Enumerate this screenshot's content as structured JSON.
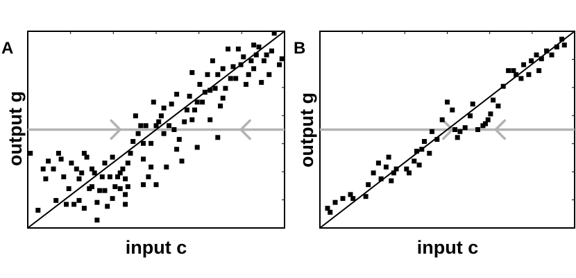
{
  "colors": {
    "points": "#000000",
    "diagonal": "#000000",
    "threshold": "#b3b3b3",
    "frame": "#000000"
  },
  "chart_data": [
    {
      "type": "scatter",
      "panel_label": "A",
      "xlabel": "input c",
      "ylabel": "output g",
      "xlim": [
        0,
        1
      ],
      "ylim": [
        0,
        1
      ],
      "grid": false,
      "diagonal": {
        "from": [
          0,
          0
        ],
        "to": [
          1,
          1
        ]
      },
      "threshold": {
        "y": 0.5,
        "arrows": [
          {
            "x": 0.36,
            "direction": "right"
          },
          {
            "x": 0.83,
            "direction": "left"
          }
        ]
      },
      "points": [
        [
          0.01,
          0.38
        ],
        [
          0.04,
          0.09
        ],
        [
          0.06,
          0.3
        ],
        [
          0.07,
          0.25
        ],
        [
          0.08,
          0.34
        ],
        [
          0.1,
          0.3
        ],
        [
          0.11,
          0.14
        ],
        [
          0.12,
          0.38
        ],
        [
          0.13,
          0.35
        ],
        [
          0.14,
          0.26
        ],
        [
          0.15,
          0.12
        ],
        [
          0.16,
          0.2
        ],
        [
          0.17,
          0.33
        ],
        [
          0.18,
          0.12
        ],
        [
          0.19,
          0.3
        ],
        [
          0.2,
          0.25
        ],
        [
          0.2,
          0.14
        ],
        [
          0.21,
          0.28
        ],
        [
          0.22,
          0.1
        ],
        [
          0.22,
          0.38
        ],
        [
          0.23,
          0.36
        ],
        [
          0.24,
          0.2
        ],
        [
          0.25,
          0.3
        ],
        [
          0.25,
          0.21
        ],
        [
          0.26,
          0.28
        ],
        [
          0.27,
          0.04
        ],
        [
          0.27,
          0.13
        ],
        [
          0.28,
          0.19
        ],
        [
          0.29,
          0.26
        ],
        [
          0.3,
          0.33
        ],
        [
          0.3,
          0.19
        ],
        [
          0.31,
          0.11
        ],
        [
          0.32,
          0.26
        ],
        [
          0.33,
          0.15
        ],
        [
          0.33,
          0.36
        ],
        [
          0.34,
          0.21
        ],
        [
          0.35,
          0.26
        ],
        [
          0.36,
          0.2
        ],
        [
          0.36,
          0.28
        ],
        [
          0.37,
          0.3
        ],
        [
          0.38,
          0.17
        ],
        [
          0.38,
          0.12
        ],
        [
          0.38,
          0.25
        ],
        [
          0.39,
          0.21
        ],
        [
          0.39,
          0.33
        ],
        [
          0.4,
          0.38
        ],
        [
          0.41,
          0.44
        ],
        [
          0.42,
          0.57
        ],
        [
          0.43,
          0.48
        ],
        [
          0.44,
          0.52
        ],
        [
          0.45,
          0.22
        ],
        [
          0.45,
          0.35
        ],
        [
          0.45,
          0.43
        ],
        [
          0.46,
          0.52
        ],
        [
          0.47,
          0.26
        ],
        [
          0.48,
          0.31
        ],
        [
          0.48,
          0.43
        ],
        [
          0.49,
          0.64
        ],
        [
          0.5,
          0.22
        ],
        [
          0.5,
          0.52
        ],
        [
          0.51,
          0.54
        ],
        [
          0.52,
          0.57
        ],
        [
          0.53,
          0.48
        ],
        [
          0.53,
          0.61
        ],
        [
          0.54,
          0.31
        ],
        [
          0.55,
          0.52
        ],
        [
          0.56,
          0.63
        ],
        [
          0.57,
          0.5
        ],
        [
          0.58,
          0.4
        ],
        [
          0.58,
          0.68
        ],
        [
          0.59,
          0.45
        ],
        [
          0.6,
          0.34
        ],
        [
          0.61,
          0.54
        ],
        [
          0.62,
          0.6
        ],
        [
          0.63,
          0.67
        ],
        [
          0.64,
          0.55
        ],
        [
          0.64,
          0.79
        ],
        [
          0.65,
          0.6
        ],
        [
          0.66,
          0.64
        ],
        [
          0.66,
          0.41
        ],
        [
          0.67,
          0.73
        ],
        [
          0.68,
          0.64
        ],
        [
          0.69,
          0.69
        ],
        [
          0.7,
          0.78
        ],
        [
          0.71,
          0.55
        ],
        [
          0.71,
          0.7
        ],
        [
          0.72,
          0.85
        ],
        [
          0.73,
          0.71
        ],
        [
          0.74,
          0.46
        ],
        [
          0.74,
          0.78
        ],
        [
          0.75,
          0.62
        ],
        [
          0.76,
          0.66
        ],
        [
          0.76,
          0.81
        ],
        [
          0.77,
          0.71
        ],
        [
          0.78,
          0.91
        ],
        [
          0.79,
          0.76
        ],
        [
          0.8,
          0.82
        ],
        [
          0.81,
          0.76
        ],
        [
          0.82,
          0.91
        ],
        [
          0.83,
          0.83
        ],
        [
          0.84,
          0.87
        ],
        [
          0.85,
          0.73
        ],
        [
          0.86,
          0.78
        ],
        [
          0.87,
          0.85
        ],
        [
          0.88,
          0.81
        ],
        [
          0.88,
          0.93
        ],
        [
          0.89,
          0.88
        ],
        [
          0.9,
          0.92
        ],
        [
          0.91,
          0.74
        ],
        [
          0.92,
          0.85
        ],
        [
          0.93,
          0.88
        ],
        [
          0.94,
          0.78
        ],
        [
          0.95,
          0.9
        ],
        [
          0.96,
          0.99
        ],
        [
          0.98,
          0.83
        ],
        [
          0.99,
          0.86
        ]
      ]
    },
    {
      "type": "scatter",
      "panel_label": "B",
      "xlabel": "input c",
      "ylabel": "output g",
      "xlim": [
        0,
        1
      ],
      "ylim": [
        0,
        1
      ],
      "grid": false,
      "diagonal": {
        "from": [
          0,
          0
        ],
        "to": [
          1,
          1
        ]
      },
      "threshold": {
        "y": 0.5,
        "arrows": [
          {
            "x": 0.52,
            "direction": "right"
          },
          {
            "x": 0.69,
            "direction": "left"
          }
        ]
      },
      "points": [
        [
          0.03,
          0.1
        ],
        [
          0.04,
          0.08
        ],
        [
          0.06,
          0.13
        ],
        [
          0.09,
          0.15
        ],
        [
          0.12,
          0.17
        ],
        [
          0.13,
          0.15
        ],
        [
          0.18,
          0.16
        ],
        [
          0.19,
          0.22
        ],
        [
          0.21,
          0.28
        ],
        [
          0.23,
          0.33
        ],
        [
          0.24,
          0.25
        ],
        [
          0.26,
          0.31
        ],
        [
          0.27,
          0.36
        ],
        [
          0.28,
          0.24
        ],
        [
          0.29,
          0.28
        ],
        [
          0.3,
          0.3
        ],
        [
          0.34,
          0.3
        ],
        [
          0.35,
          0.28
        ],
        [
          0.37,
          0.34
        ],
        [
          0.38,
          0.39
        ],
        [
          0.39,
          0.32
        ],
        [
          0.4,
          0.4
        ],
        [
          0.41,
          0.44
        ],
        [
          0.43,
          0.38
        ],
        [
          0.44,
          0.49
        ],
        [
          0.46,
          0.45
        ],
        [
          0.48,
          0.55
        ],
        [
          0.5,
          0.64
        ],
        [
          0.52,
          0.6
        ],
        [
          0.53,
          0.5
        ],
        [
          0.54,
          0.46
        ],
        [
          0.55,
          0.49
        ],
        [
          0.57,
          0.51
        ],
        [
          0.59,
          0.57
        ],
        [
          0.6,
          0.63
        ],
        [
          0.62,
          0.5
        ],
        [
          0.64,
          0.52
        ],
        [
          0.65,
          0.53
        ],
        [
          0.66,
          0.55
        ],
        [
          0.67,
          0.58
        ],
        [
          0.68,
          0.65
        ],
        [
          0.7,
          0.62
        ],
        [
          0.72,
          0.72
        ],
        [
          0.74,
          0.8
        ],
        [
          0.76,
          0.8
        ],
        [
          0.77,
          0.78
        ],
        [
          0.79,
          0.76
        ],
        [
          0.8,
          0.83
        ],
        [
          0.82,
          0.78
        ],
        [
          0.83,
          0.85
        ],
        [
          0.85,
          0.88
        ],
        [
          0.86,
          0.8
        ],
        [
          0.87,
          0.86
        ],
        [
          0.89,
          0.9
        ],
        [
          0.91,
          0.88
        ],
        [
          0.93,
          0.92
        ],
        [
          0.95,
          0.96
        ],
        [
          0.96,
          0.93
        ]
      ]
    }
  ]
}
